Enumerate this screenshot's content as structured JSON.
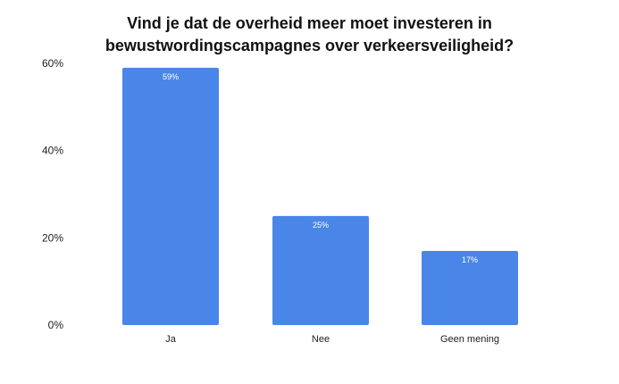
{
  "chart_data": {
    "type": "bar",
    "title_lines": [
      "Vind je dat de overheid meer moet investeren in",
      "bewustwordingscampagnes over verkeersveiligheid?"
    ],
    "categories": [
      "Ja",
      "Nee",
      "Geen mening"
    ],
    "values": [
      59,
      25,
      17
    ],
    "data_labels": [
      "59%",
      "25%",
      "17%"
    ],
    "y_ticks": [
      0,
      20,
      40,
      60
    ],
    "y_tick_labels": [
      "0%",
      "20%",
      "40%",
      "60%"
    ],
    "ylim": [
      0,
      60
    ],
    "bar_color": "#4a86e8",
    "grid": false,
    "legend": "none"
  }
}
